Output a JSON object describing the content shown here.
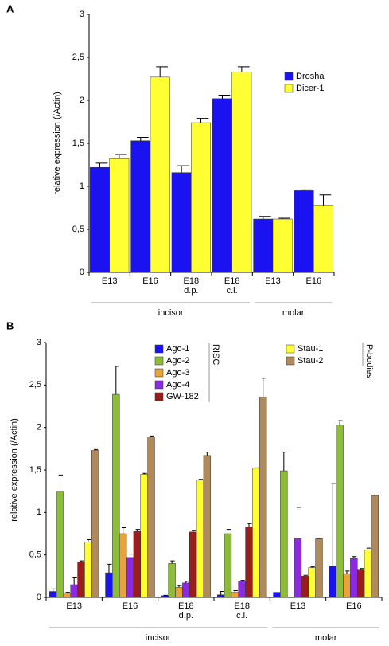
{
  "chart_data": [
    {
      "type": "bar",
      "label": "A",
      "ylabel": "relative expression (/Actin)",
      "categories": [
        "E13",
        "E16",
        "E18 d.p.",
        "E18 c.l.",
        "E13",
        "E16"
      ],
      "groups": [
        "incisor",
        "incisor",
        "incisor",
        "incisor",
        "molar",
        "molar"
      ],
      "series": [
        {
          "name": "Drosha",
          "color": "#1a12f0",
          "values": [
            1.22,
            1.53,
            1.16,
            2.02,
            0.62,
            0.95
          ],
          "errors": [
            0.05,
            0.04,
            0.08,
            0.04,
            0.03,
            0.01
          ]
        },
        {
          "name": "Dicer-1",
          "color": "#ffff33",
          "values": [
            1.33,
            2.27,
            1.74,
            2.33,
            0.62,
            0.78
          ],
          "errors": [
            0.04,
            0.12,
            0.05,
            0.06,
            0.01,
            0.12
          ]
        }
      ],
      "ylim": [
        0,
        3
      ],
      "yticks": [
        0,
        {
          "value": 0.5,
          "label": "0,5"
        },
        1,
        {
          "value": 1.5,
          "label": "1,5"
        },
        2,
        {
          "value": 2.5,
          "label": "2,5"
        },
        3
      ]
    },
    {
      "type": "bar",
      "label": "B",
      "ylabel": "relative expression (/Actin)",
      "categories": [
        "E13",
        "E16",
        "E18 d.p.",
        "E18 c.l.",
        "E13",
        "E16"
      ],
      "groups": [
        "incisor",
        "incisor",
        "incisor",
        "incisor",
        "molar",
        "molar"
      ],
      "series": [
        {
          "name": "Ago-1",
          "group": "RISC",
          "color": "#1a12f0",
          "values": [
            0.07,
            0.29,
            0.02,
            0.03,
            0.06,
            0.37
          ],
          "errors": [
            0.03,
            0.1,
            0.005,
            0.04,
            null,
            0.97
          ]
        },
        {
          "name": "Ago-2",
          "group": "RISC",
          "color": "#8dbb3c",
          "values": [
            1.24,
            2.39,
            0.4,
            0.75,
            1.49,
            2.03
          ],
          "errors": [
            0.2,
            0.33,
            0.03,
            0.05,
            0.22,
            0.05
          ]
        },
        {
          "name": "Ago-3",
          "group": "RISC",
          "color": "#e8a33a",
          "values": [
            0.05,
            0.75,
            0.12,
            0.06,
            null,
            0.28
          ],
          "errors": [
            0.01,
            0.07,
            0.02,
            0.02,
            null,
            0.03
          ]
        },
        {
          "name": "Ago-4",
          "group": "RISC",
          "color": "#8a2be2",
          "values": [
            0.15,
            0.47,
            0.17,
            0.19,
            0.69,
            0.46
          ],
          "errors": [
            0.08,
            0.04,
            0.02,
            0.01,
            0.37,
            0.02
          ]
        },
        {
          "name": "GW-182",
          "group": "RISC",
          "color": "#9b1c1c",
          "values": [
            0.42,
            0.78,
            0.77,
            0.83,
            0.25,
            0.33
          ],
          "errors": [
            0.01,
            0.02,
            0.02,
            0.04,
            0.01,
            0.01
          ]
        },
        {
          "name": "Stau-1",
          "group": "P-bodies",
          "color": "#ffff33",
          "values": [
            0.65,
            1.45,
            1.38,
            1.52,
            0.35,
            0.56
          ],
          "errors": [
            0.03,
            0.01,
            0.01,
            0.005,
            0.01,
            0.02
          ]
        },
        {
          "name": "Stau-2",
          "group": "P-bodies",
          "color": "#b08a5a",
          "values": [
            1.73,
            1.89,
            1.67,
            2.36,
            0.69,
            1.2
          ],
          "errors": [
            0.01,
            0.01,
            0.04,
            0.22,
            0.005,
            0.005
          ]
        }
      ],
      "ylim": [
        0,
        3
      ],
      "yticks": [
        0,
        {
          "value": 0.5,
          "label": "0,5"
        },
        1,
        {
          "value": 1.5,
          "label": "1,5"
        },
        2,
        {
          "value": 2.5,
          "label": "2,5"
        },
        3
      ]
    }
  ]
}
